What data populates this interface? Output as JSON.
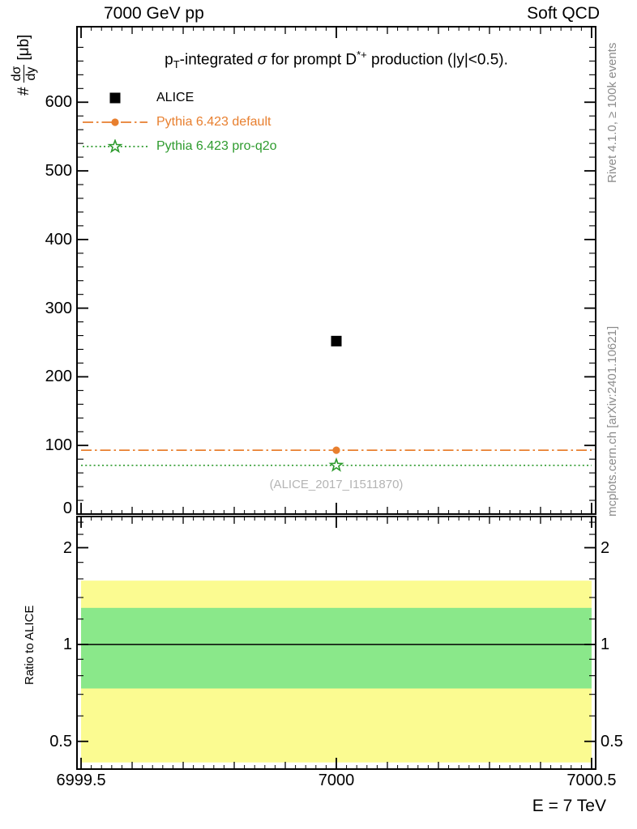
{
  "header": {
    "left": "7000 GeV pp",
    "right": "Soft QCD"
  },
  "side_notes": {
    "rivet": "Rivet 4.1.0, ≥ 100k events",
    "mcplots": "mcplots.cern.ch [arXiv:2401.10621]"
  },
  "chart_data": {
    "type": "scatter",
    "title_plain": "pT-integrated σ for prompt D*+ production (|y|<0.5).",
    "title_parts": {
      "p": "p",
      "p_sub": "T",
      "mid": "-integrated ",
      "sigma": "σ",
      "mid2": " for prompt D",
      "d_sup": "*+",
      "tail": " production (|y|<0.5)."
    },
    "xaxis": {
      "label": "E = 7 TeV",
      "lim": [
        6999.492,
        7000.508
      ],
      "ticks": [
        {
          "label": "6999.5",
          "value": 6999.5
        },
        {
          "label": "7000",
          "value": 7000
        },
        {
          "label": "7000.5",
          "value": 7000.5
        }
      ]
    },
    "main_panel": {
      "ylabel_parts": {
        "prefix": "#",
        "frac_num": "dσ",
        "frac_den": "dy",
        "unit": "[μb]"
      },
      "yaxis": {
        "lim": [
          0,
          710
        ],
        "minor_step": 20,
        "ticks": [
          {
            "label": "0",
            "value": 0
          },
          {
            "label": "100",
            "value": 100
          },
          {
            "label": "200",
            "value": 200
          },
          {
            "label": "300",
            "value": 300
          },
          {
            "label": "400",
            "value": 400
          },
          {
            "label": "500",
            "value": 500
          },
          {
            "label": "600",
            "value": 600
          }
        ]
      },
      "x_value": 7000,
      "series": [
        {
          "name": "ALICE",
          "role": "data",
          "marker": "filled-square",
          "line": "none",
          "color": "#000000",
          "y": 252
        },
        {
          "name": "Pythia 6.423 default",
          "role": "mc",
          "marker": "filled-circle",
          "line": "dash-dot",
          "color": "#e87f2e",
          "y": 93
        },
        {
          "name": "Pythia 6.423 pro-q2o",
          "role": "mc",
          "marker": "open-star",
          "line": "dotted",
          "color": "#2e9b2e",
          "y": 71
        }
      ],
      "watermark": "(ALICE_2017_I1511870)"
    },
    "ratio_panel": {
      "ylabel": "Ratio to ALICE",
      "scale": "log",
      "yaxis": {
        "lim": [
          0.41,
          2.5
        ],
        "ticks": [
          {
            "label": "0.5",
            "value": 0.5
          },
          {
            "label": "1",
            "value": 1
          },
          {
            "label": "2",
            "value": 2
          }
        ],
        "minor_ticks": [
          0.6,
          0.7,
          0.8,
          0.9,
          1.2,
          1.4,
          1.6,
          1.8,
          2.2,
          2.4
        ]
      },
      "reference_line": 1.0,
      "band_x": [
        6999.5,
        7000.5
      ],
      "bands": [
        {
          "name": "outer-uncertainty",
          "color": "#fbfb91",
          "lo": 0.43,
          "hi": 1.58
        },
        {
          "name": "inner-uncertainty",
          "color": "#8ae88a",
          "lo": 0.73,
          "hi": 1.3
        }
      ]
    }
  }
}
